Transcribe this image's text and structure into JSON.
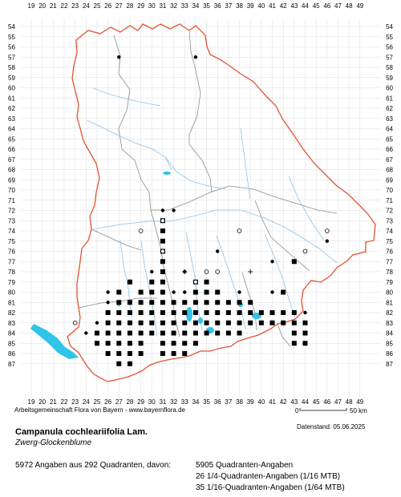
{
  "map": {
    "x_axis_labels": [
      "19",
      "20",
      "21",
      "22",
      "23",
      "24",
      "25",
      "26",
      "27",
      "28",
      "29",
      "30",
      "31",
      "32",
      "33",
      "34",
      "35",
      "36",
      "37",
      "38",
      "39",
      "40",
      "41",
      "42",
      "43",
      "44",
      "45",
      "46",
      "47",
      "48",
      "49"
    ],
    "y_axis_labels": [
      "54",
      "55",
      "56",
      "57",
      "58",
      "59",
      "60",
      "61",
      "62",
      "63",
      "64",
      "65",
      "66",
      "67",
      "68",
      "69",
      "70",
      "71",
      "72",
      "73",
      "74",
      "75",
      "76",
      "77",
      "78",
      "79",
      "80",
      "81",
      "82",
      "83",
      "84",
      "85",
      "86",
      "87"
    ],
    "colors": {
      "state_border": "#e3532f",
      "district_border": "#8c8c8c",
      "rivers": "#8bc3e6",
      "lakes": "#2fc4e8",
      "grid": "#dcdcdc",
      "records": "#000000"
    },
    "scale_bar": {
      "start_label": "0",
      "end_label": "50 km"
    },
    "records_squares": [
      [
        27,
        80
      ],
      [
        27,
        81
      ],
      [
        28,
        81
      ],
      [
        29,
        81
      ],
      [
        30,
        81
      ],
      [
        31,
        81
      ],
      [
        32,
        81
      ],
      [
        33,
        81
      ],
      [
        34,
        81
      ],
      [
        35,
        81
      ],
      [
        36,
        81
      ],
      [
        26,
        82
      ],
      [
        27,
        82
      ],
      [
        28,
        82
      ],
      [
        29,
        82
      ],
      [
        30,
        82
      ],
      [
        31,
        82
      ],
      [
        32,
        82
      ],
      [
        33,
        82
      ],
      [
        34,
        82
      ],
      [
        35,
        82
      ],
      [
        36,
        82
      ],
      [
        37,
        82
      ],
      [
        38,
        82
      ],
      [
        39,
        82
      ],
      [
        40,
        82
      ],
      [
        41,
        82
      ],
      [
        42,
        82
      ],
      [
        43,
        82
      ],
      [
        26,
        83
      ],
      [
        27,
        83
      ],
      [
        28,
        83
      ],
      [
        29,
        83
      ],
      [
        30,
        83
      ],
      [
        31,
        83
      ],
      [
        32,
        83
      ],
      [
        33,
        83
      ],
      [
        34,
        83
      ],
      [
        35,
        83
      ],
      [
        36,
        83
      ],
      [
        37,
        83
      ],
      [
        38,
        83
      ],
      [
        39,
        83
      ],
      [
        40,
        83
      ],
      [
        41,
        83
      ],
      [
        42,
        83
      ],
      [
        43,
        83
      ],
      [
        44,
        83
      ],
      [
        25,
        84
      ],
      [
        26,
        84
      ],
      [
        27,
        84
      ],
      [
        28,
        84
      ],
      [
        29,
        84
      ],
      [
        30,
        84
      ],
      [
        31,
        84
      ],
      [
        32,
        84
      ],
      [
        33,
        84
      ],
      [
        34,
        84
      ],
      [
        35,
        84
      ],
      [
        36,
        84
      ],
      [
        37,
        84
      ],
      [
        38,
        84
      ],
      [
        43,
        84
      ],
      [
        44,
        84
      ],
      [
        25,
        85
      ],
      [
        26,
        85
      ],
      [
        27,
        85
      ],
      [
        28,
        85
      ],
      [
        29,
        85
      ],
      [
        31,
        85
      ],
      [
        32,
        85
      ],
      [
        33,
        85
      ],
      [
        34,
        85
      ],
      [
        43,
        85
      ],
      [
        44,
        85
      ],
      [
        26,
        86
      ],
      [
        27,
        86
      ],
      [
        28,
        86
      ],
      [
        29,
        86
      ],
      [
        31,
        86
      ],
      [
        32,
        86
      ],
      [
        33,
        86
      ],
      [
        27,
        87
      ],
      [
        28,
        87
      ],
      [
        31,
        73
      ],
      [
        31,
        74
      ],
      [
        31,
        75
      ],
      [
        31,
        76
      ],
      [
        31,
        77
      ],
      [
        31,
        78
      ],
      [
        31,
        79
      ],
      [
        31,
        80
      ],
      [
        34,
        79
      ],
      [
        35,
        79
      ],
      [
        34,
        80
      ],
      [
        35,
        80
      ],
      [
        36,
        80
      ],
      [
        37,
        81
      ],
      [
        38,
        81
      ],
      [
        39,
        81
      ],
      [
        30,
        80
      ],
      [
        30,
        79
      ],
      [
        43,
        77
      ],
      [
        42,
        80
      ],
      [
        29,
        80
      ],
      [
        28,
        79
      ]
    ],
    "records_dots": [
      [
        26,
        80
      ],
      [
        26,
        81
      ],
      [
        31,
        82
      ],
      [
        31,
        72
      ],
      [
        32,
        72
      ],
      [
        30,
        78
      ],
      [
        32,
        80
      ],
      [
        33,
        80
      ],
      [
        34,
        80
      ],
      [
        35,
        78
      ],
      [
        36,
        80
      ],
      [
        38,
        80
      ],
      [
        40,
        82
      ],
      [
        41,
        80
      ],
      [
        43,
        82
      ],
      [
        44,
        82
      ],
      [
        24,
        84
      ],
      [
        25,
        83
      ],
      [
        26,
        83
      ],
      [
        46,
        75
      ],
      [
        29,
        81
      ],
      [
        27,
        57
      ],
      [
        34,
        57
      ],
      [
        41,
        77
      ],
      [
        33,
        78
      ],
      [
        36,
        76
      ]
    ],
    "records_open": [
      [
        23,
        83
      ],
      [
        29,
        74
      ],
      [
        31,
        73
      ],
      [
        38,
        74
      ],
      [
        44,
        76
      ],
      [
        46,
        74
      ],
      [
        31,
        76
      ],
      [
        35,
        78
      ],
      [
        34,
        79
      ],
      [
        36,
        78
      ]
    ],
    "records_cross": [
      [
        39,
        78
      ],
      [
        33,
        78
      ]
    ]
  },
  "footer": {
    "credit": "Arbeitsgemeinschaft Flora von Bayern - www.bayernflora.de",
    "datenstand": "Datenstand: 05.06.2025",
    "species_name": "Campanula cochleariifolia Lam.",
    "common_name": "Zwerg-Glockenblume",
    "stats_left": "5972 Angaben aus 292 Quadranten, davon:",
    "stats_right_1": "5905 Quadranten-Angaben",
    "stats_right_2": "26 1/4-Quadranten-Angaben (1/16 MTB)",
    "stats_right_3": "35 1/16-Quadranten-Angaben (1/64 MTB)"
  }
}
